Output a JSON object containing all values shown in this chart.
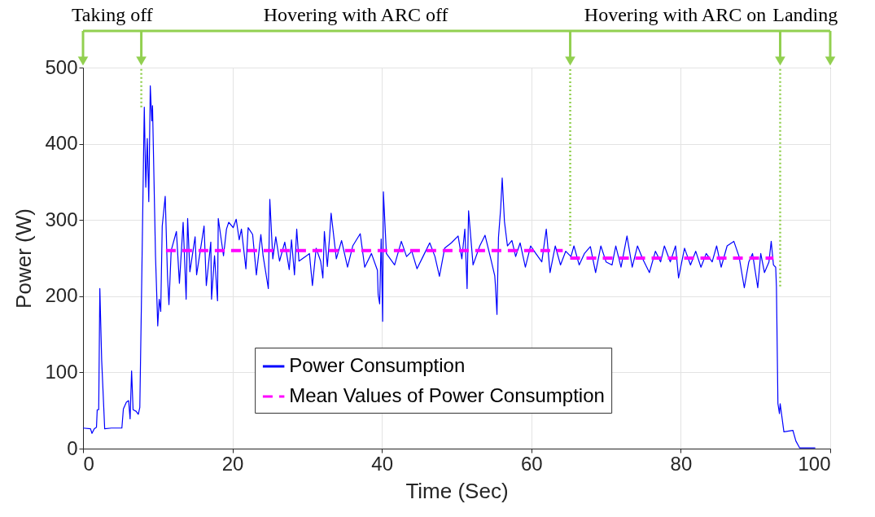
{
  "chart_data": {
    "type": "line",
    "xlabel": "Time (Sec)",
    "ylabel": "Power (W)",
    "xlim": [
      0,
      100
    ],
    "ylim": [
      0,
      500
    ],
    "xticks": [
      0,
      20,
      40,
      60,
      80,
      100
    ],
    "yticks": [
      0,
      100,
      200,
      300,
      400,
      500
    ],
    "grid": true,
    "legend": "bottom",
    "annotations": [
      "Taking off",
      "Hovering with ARC off",
      "Hovering with ARC on",
      "Landing"
    ],
    "ref_lines": [
      {
        "axis": "x",
        "value": 7.8,
        "color": "#92d050",
        "line_style": "dotted"
      },
      {
        "axis": "x",
        "value": 65.2,
        "color": "#92d050",
        "line_style": "dotted"
      },
      {
        "axis": "x",
        "value": 93.3,
        "color": "#92d050",
        "line_style": "dotted"
      }
    ],
    "series": [
      {
        "name": "Power Consumption",
        "color": "#0000ff",
        "line_style": "solid",
        "x": [
          0,
          1.0,
          1.2,
          1.5,
          1.8,
          1.9,
          2.1,
          2.25,
          2.5,
          2.9,
          3.8,
          5.2,
          5.4,
          5.8,
          6.1,
          6.3,
          6.5,
          6.7,
          7.1,
          7.4,
          7.6,
          7.8,
          8.1,
          8.2,
          8.4,
          8.6,
          8.8,
          9.0,
          9.2,
          9.3,
          9.5,
          9.7,
          10.0,
          10.2,
          10.4,
          10.6,
          11.0,
          11.3,
          11.5,
          11.8,
          12.5,
          12.9,
          13.4,
          13.8,
          14.0,
          14.3,
          15.0,
          15.2,
          16.2,
          16.5,
          17.1,
          17.2,
          17.6,
          18.0,
          18.1,
          18.5,
          18.8,
          19.2,
          19.5,
          20.1,
          20.5,
          20.9,
          21.2,
          21.8,
          22.1,
          22.7,
          23.2,
          23.8,
          24.1,
          24.8,
          25.0,
          25.4,
          25.8,
          26.3,
          27.0,
          27.6,
          27.9,
          28.3,
          28.6,
          28.9,
          29.9,
          30.3,
          30.7,
          31.2,
          31.8,
          32.1,
          32.3,
          32.7,
          33.0,
          33.2,
          33.9,
          34.6,
          35.4,
          36.1,
          37.1,
          37.7,
          38.6,
          39.4,
          39.5,
          39.7,
          39.9,
          40.1,
          40.2,
          40.6,
          41.7,
          42.6,
          43.3,
          44.0,
          44.7,
          45.5,
          46.4,
          47.1,
          47.7,
          48.4,
          49.3,
          50.2,
          50.7,
          51.1,
          51.4,
          51.6,
          52.2,
          53.1,
          53.8,
          54.5,
          55.1,
          55.2,
          55.4,
          55.6,
          55.9,
          56.1,
          56.4,
          56.8,
          57.4,
          57.9,
          58.5,
          59.2,
          59.9,
          60.6,
          61.4,
          62.0,
          62.5,
          63.2,
          63.9,
          64.6,
          65.3,
          65.7,
          66.4,
          67.1,
          67.9,
          68.6,
          69.3,
          70.0,
          70.8,
          71.3,
          72.0,
          72.8,
          73.5,
          74.2,
          74.9,
          75.8,
          76.6,
          77.3,
          77.8,
          78.6,
          79.3,
          79.7,
          80.5,
          81.3,
          82.0,
          82.7,
          83.4,
          84.2,
          84.8,
          85.4,
          86.2,
          87.1,
          87.8,
          88.5,
          89.1,
          89.6,
          90.3,
          90.7,
          91.2,
          91.8,
          92.1,
          92.4,
          92.7,
          92.8,
          93.0,
          93.2,
          93.3,
          93.8,
          95.0,
          95.4,
          95.9,
          98.0
        ],
        "values": [
          27,
          26,
          20,
          26,
          28,
          51,
          51,
          210,
          115,
          26,
          27,
          27,
          52,
          61,
          63,
          39,
          102,
          51,
          49,
          45,
          54,
          182,
          384,
          448,
          343,
          407,
          324,
          476,
          430,
          450,
          352,
          253,
          161,
          196,
          180,
          292,
          331,
          228,
          189,
          260,
          285,
          217,
          297,
          196,
          302,
          232,
          278,
          228,
          292,
          214,
          271,
          196,
          253,
          194,
          302,
          274,
          253,
          288,
          297,
          290,
          301,
          274,
          288,
          236,
          290,
          281,
          228,
          281,
          253,
          210,
          327,
          249,
          278,
          246,
          271,
          235,
          274,
          228,
          288,
          246,
          253,
          256,
          214,
          263,
          246,
          224,
          285,
          239,
          278,
          309,
          249,
          273,
          238,
          266,
          282,
          238,
          256,
          234,
          202,
          190,
          275,
          167,
          337,
          256,
          241,
          272,
          252,
          259,
          236,
          252,
          270,
          252,
          226,
          263,
          270,
          279,
          249,
          288,
          210,
          312,
          241,
          266,
          280,
          252,
          227,
          213,
          176,
          277,
          316,
          355,
          298,
          266,
          273,
          252,
          270,
          238,
          266,
          256,
          245,
          288,
          231,
          266,
          241,
          259,
          252,
          266,
          241,
          256,
          265,
          231,
          266,
          245,
          241,
          266,
          238,
          279,
          238,
          266,
          249,
          231,
          259,
          245,
          266,
          245,
          266,
          224,
          263,
          241,
          259,
          238,
          256,
          245,
          266,
          238,
          266,
          272,
          252,
          211,
          245,
          256,
          211,
          256,
          231,
          245,
          272,
          241,
          238,
          213,
          59,
          46,
          59,
          22,
          24,
          10,
          1,
          1
        ]
      },
      {
        "name": "Mean Values of Power Consumption",
        "color": "#ff00ff",
        "line_style": "dashed",
        "x": [
          11.1,
          64.2,
          64.7,
          65.2,
          92.4
        ],
        "values": [
          260,
          260,
          null,
          250,
          250
        ]
      }
    ]
  }
}
